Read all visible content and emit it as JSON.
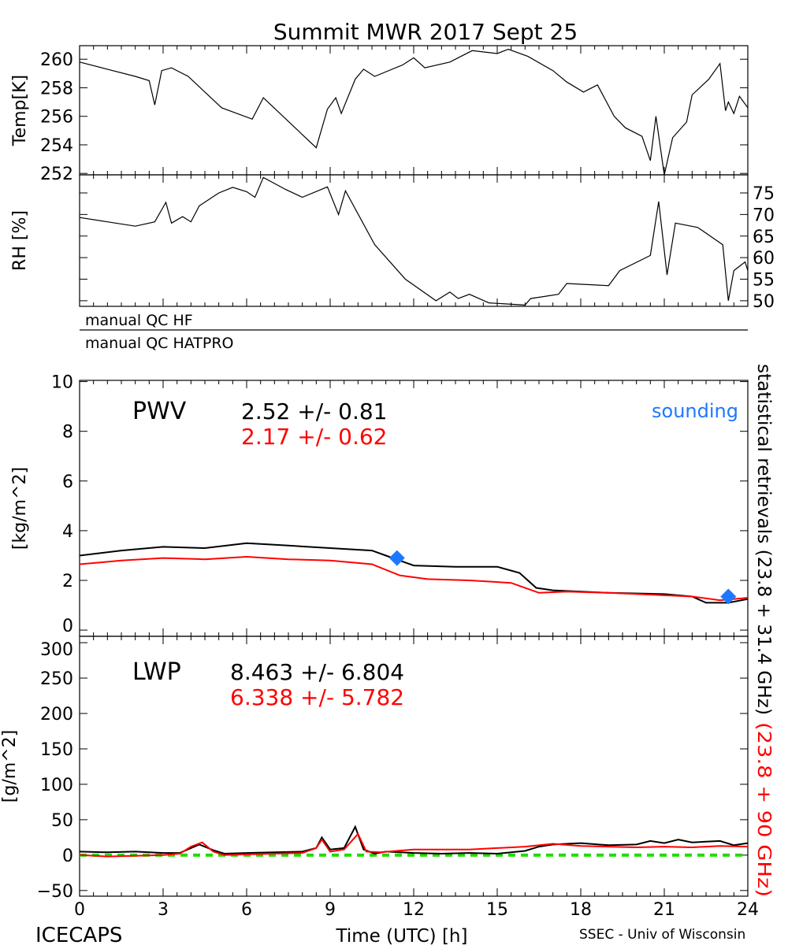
{
  "title": "Summit MWR 2017 Sept 25",
  "footer": {
    "left": "ICECAPS",
    "center": "Time (UTC) [h]",
    "right": "SSEC - Univ of Wisconsin"
  },
  "qc_labels": [
    "manual QC HF",
    "manual QC HATPRO"
  ],
  "right_label": {
    "black": "statistical retrievals (23.8 + 31.4 GHz)",
    "red": "(23.8 + 90 GHz)"
  },
  "colors": {
    "series1": "#000000",
    "series2": "#ff0000",
    "sounding": "#1e78ff",
    "zero_line": "#22dd00"
  },
  "chart_data": [
    {
      "type": "line",
      "ylabel": "Temp[K]",
      "ylim": [
        251.9,
        260.95
      ],
      "xlim": [
        0,
        24
      ],
      "yticks": [
        252,
        254,
        256,
        258,
        260
      ],
      "series": [
        {
          "values": [
            [
              0,
              259.8
            ],
            [
              1,
              259.3
            ],
            [
              2,
              258.8
            ],
            [
              2.5,
              258.5
            ],
            [
              2.7,
              256.8
            ],
            [
              2.95,
              259.2
            ],
            [
              3.3,
              259.4
            ],
            [
              3.9,
              258.8
            ],
            [
              5.1,
              256.6
            ],
            [
              6.2,
              255.8
            ],
            [
              6.6,
              257.3
            ],
            [
              8.5,
              253.8
            ],
            [
              8.9,
              256.5
            ],
            [
              9.2,
              257.3
            ],
            [
              9.4,
              256.2
            ],
            [
              9.9,
              258.6
            ],
            [
              10.2,
              259.3
            ],
            [
              10.6,
              258.8
            ],
            [
              11.6,
              259.6
            ],
            [
              12,
              260.1
            ],
            [
              12.4,
              259.4
            ],
            [
              13.3,
              259.8
            ],
            [
              14.1,
              260.6
            ],
            [
              15,
              260.4
            ],
            [
              15.4,
              260.7
            ],
            [
              16.1,
              260.2
            ],
            [
              17,
              259.2
            ],
            [
              17.5,
              258.4
            ],
            [
              18.1,
              257.7
            ],
            [
              18.6,
              258.2
            ],
            [
              19.2,
              256
            ],
            [
              19.6,
              255.2
            ],
            [
              20.2,
              254.6
            ],
            [
              20.5,
              252.9
            ],
            [
              20.7,
              256
            ],
            [
              21,
              251.9
            ],
            [
              21.3,
              254.5
            ],
            [
              21.8,
              255.6
            ],
            [
              22,
              257.5
            ],
            [
              22.6,
              258.6
            ],
            [
              23,
              259.7
            ],
            [
              23.2,
              256.4
            ],
            [
              23.3,
              257
            ],
            [
              23.5,
              256.2
            ],
            [
              23.7,
              257.4
            ],
            [
              24,
              256.6
            ]
          ]
        }
      ]
    },
    {
      "type": "line",
      "ylabel": "RH [%]",
      "ylim": [
        48.7,
        79.2
      ],
      "xlim": [
        0,
        24
      ],
      "yticks": [
        50,
        55,
        60,
        65,
        70,
        75
      ],
      "series": [
        {
          "values": [
            [
              0,
              69.3
            ],
            [
              1,
              68.3
            ],
            [
              2,
              67.3
            ],
            [
              2.7,
              68.3
            ],
            [
              3.1,
              72.8
            ],
            [
              3.3,
              68
            ],
            [
              3.7,
              69.5
            ],
            [
              4,
              68.3
            ],
            [
              4.3,
              72
            ],
            [
              5,
              75
            ],
            [
              5.5,
              76.3
            ],
            [
              6,
              75.3
            ],
            [
              6.3,
              74
            ],
            [
              6.6,
              78.6
            ],
            [
              7.4,
              75.8
            ],
            [
              8,
              74
            ],
            [
              8.9,
              76.4
            ],
            [
              9.3,
              70
            ],
            [
              9.55,
              75.5
            ],
            [
              10.6,
              63
            ],
            [
              11.7,
              55
            ],
            [
              12.8,
              50
            ],
            [
              13.3,
              52
            ],
            [
              13.6,
              50.5
            ],
            [
              14,
              51.5
            ],
            [
              14.7,
              49.5
            ],
            [
              16,
              49
            ],
            [
              16.2,
              50.5
            ],
            [
              17.2,
              51.5
            ],
            [
              17.5,
              54
            ],
            [
              19,
              53.5
            ],
            [
              19.4,
              57
            ],
            [
              20.5,
              60.5
            ],
            [
              20.8,
              73
            ],
            [
              21.1,
              56
            ],
            [
              21.4,
              68
            ],
            [
              22.2,
              67
            ],
            [
              23.1,
              63
            ],
            [
              23.3,
              50
            ],
            [
              23.5,
              57
            ],
            [
              23.9,
              59
            ],
            [
              24,
              57
            ]
          ]
        }
      ]
    },
    {
      "type": "line",
      "ylabel": "[kg/m^2]",
      "ylim": [
        -0.25,
        10.05
      ],
      "xlim": [
        0,
        24
      ],
      "yticks": [
        0,
        2,
        4,
        6,
        8,
        10
      ],
      "label": "PWV",
      "stats": [
        {
          "text": "2.52 +/-  0.81",
          "color": "#000000"
        },
        {
          "text": "2.17 +/-  0.62",
          "color": "#ff0000"
        }
      ],
      "sounding_label": "sounding",
      "soundings": [
        [
          11.4,
          2.9
        ],
        [
          23.3,
          1.35
        ]
      ],
      "series": [
        {
          "color": "#000000",
          "values": [
            [
              0,
              3.0
            ],
            [
              1.5,
              3.2
            ],
            [
              3,
              3.35
            ],
            [
              4.5,
              3.3
            ],
            [
              6,
              3.5
            ],
            [
              7.5,
              3.4
            ],
            [
              9,
              3.3
            ],
            [
              10.5,
              3.2
            ],
            [
              11,
              3.0
            ],
            [
              12,
              2.6
            ],
            [
              13.5,
              2.55
            ],
            [
              15,
              2.55
            ],
            [
              15.8,
              2.3
            ],
            [
              16.4,
              1.7
            ],
            [
              17,
              1.6
            ],
            [
              19,
              1.5
            ],
            [
              21,
              1.45
            ],
            [
              22,
              1.35
            ],
            [
              22.5,
              1.1
            ],
            [
              23.3,
              1.1
            ],
            [
              24,
              1.25
            ]
          ]
        },
        {
          "color": "#ff0000",
          "values": [
            [
              0,
              2.65
            ],
            [
              1.5,
              2.8
            ],
            [
              3,
              2.9
            ],
            [
              4.5,
              2.85
            ],
            [
              6,
              2.95
            ],
            [
              7.5,
              2.85
            ],
            [
              9,
              2.8
            ],
            [
              10.5,
              2.65
            ],
            [
              11.5,
              2.2
            ],
            [
              12.5,
              2.05
            ],
            [
              14,
              2.0
            ],
            [
              15.5,
              1.9
            ],
            [
              16.5,
              1.5
            ],
            [
              17.5,
              1.55
            ],
            [
              19,
              1.5
            ],
            [
              21,
              1.4
            ],
            [
              22,
              1.35
            ],
            [
              23,
              1.2
            ],
            [
              24,
              1.3
            ]
          ]
        }
      ]
    },
    {
      "type": "line",
      "ylabel": "[g/m^2]",
      "ylim": [
        -58,
        309
      ],
      "xlim": [
        0,
        24
      ],
      "yticks": [
        -50,
        0,
        50,
        100,
        150,
        200,
        250,
        300
      ],
      "label": "LWP",
      "stats": [
        {
          "text": "8.463 +/-  6.804",
          "color": "#000000"
        },
        {
          "text": "6.338 +/-  5.782",
          "color": "#ff0000"
        }
      ],
      "series": [
        {
          "color": "#000000",
          "values": [
            [
              0,
              5
            ],
            [
              1,
              4
            ],
            [
              2,
              5
            ],
            [
              3,
              3
            ],
            [
              3.6,
              3
            ],
            [
              4.0,
              10
            ],
            [
              4.3,
              15
            ],
            [
              4.8,
              7
            ],
            [
              5.2,
              2
            ],
            [
              6,
              3
            ],
            [
              7,
              4
            ],
            [
              8,
              5
            ],
            [
              8.5,
              10
            ],
            [
              8.7,
              25
            ],
            [
              9,
              8
            ],
            [
              9.5,
              10
            ],
            [
              9.9,
              40
            ],
            [
              10.2,
              8
            ],
            [
              10.6,
              2
            ],
            [
              11,
              5
            ],
            [
              12,
              3
            ],
            [
              13,
              2
            ],
            [
              14,
              3
            ],
            [
              15,
              2
            ],
            [
              16,
              6
            ],
            [
              16.5,
              12
            ],
            [
              17,
              15
            ],
            [
              18,
              17
            ],
            [
              19,
              14
            ],
            [
              20,
              15
            ],
            [
              20.5,
              20
            ],
            [
              21,
              17
            ],
            [
              21.5,
              22
            ],
            [
              22,
              18
            ],
            [
              23,
              20
            ],
            [
              23.5,
              14
            ],
            [
              24,
              17
            ]
          ]
        },
        {
          "color": "#ff0000",
          "values": [
            [
              0,
              0
            ],
            [
              1,
              -2
            ],
            [
              2,
              -1
            ],
            [
              3,
              0
            ],
            [
              3.6,
              2
            ],
            [
              4.0,
              12
            ],
            [
              4.4,
              18
            ],
            [
              4.8,
              5
            ],
            [
              5.2,
              0
            ],
            [
              6,
              1
            ],
            [
              7,
              2
            ],
            [
              8,
              3
            ],
            [
              8.5,
              10
            ],
            [
              8.7,
              22
            ],
            [
              9,
              5
            ],
            [
              9.5,
              8
            ],
            [
              10,
              30
            ],
            [
              10.3,
              5
            ],
            [
              10.8,
              4
            ],
            [
              12,
              8
            ],
            [
              13,
              8
            ],
            [
              14,
              8
            ],
            [
              15,
              10
            ],
            [
              16,
              12
            ],
            [
              17,
              16
            ],
            [
              18,
              13
            ],
            [
              19,
              12
            ],
            [
              20,
              11
            ],
            [
              21,
              12
            ],
            [
              22,
              11
            ],
            [
              23,
              13
            ],
            [
              24,
              12
            ]
          ]
        }
      ]
    }
  ],
  "xaxis": {
    "ticks": [
      0,
      3,
      6,
      9,
      12,
      15,
      18,
      21,
      24
    ]
  }
}
